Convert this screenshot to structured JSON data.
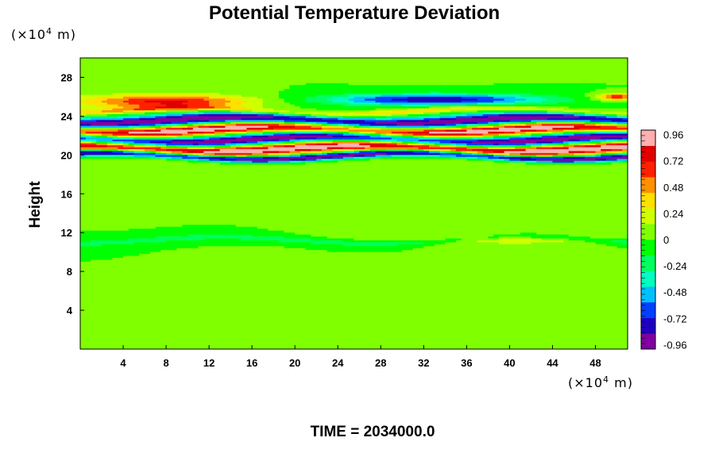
{
  "chart_data": {
    "type": "heatmap",
    "title": "Potential Temperature Deviation",
    "ylabel": "Height",
    "xlabel": "",
    "x_unit_prefix": "(×10",
    "x_unit_exp": "4",
    "x_unit_suffix": " m)",
    "y_unit_prefix": "(×10",
    "y_unit_exp": "4",
    "y_unit_suffix": " m)",
    "xlim": [
      0,
      51
    ],
    "ylim": [
      0,
      30
    ],
    "x_ticks": [
      "4",
      "8",
      "12",
      "16",
      "20",
      "24",
      "28",
      "32",
      "36",
      "40",
      "44",
      "48"
    ],
    "x_tick_values": [
      4,
      8,
      12,
      16,
      20,
      24,
      28,
      32,
      36,
      40,
      44,
      48
    ],
    "y_ticks": [
      "4",
      "8",
      "12",
      "16",
      "20",
      "24",
      "28"
    ],
    "y_tick_values": [
      4,
      8,
      12,
      16,
      20,
      24,
      28
    ],
    "colorbar": {
      "range": [
        -1.0,
        1.0
      ],
      "tick_labels": [
        "0.96",
        "0.72",
        "0.48",
        "0.24",
        "0",
        "-0.24",
        "-0.48",
        "-0.72",
        "-0.96"
      ],
      "tick_values": [
        0.96,
        0.72,
        0.48,
        0.24,
        0,
        -0.24,
        -0.48,
        -0.72,
        -0.96
      ],
      "colors_low_to_high": [
        "#8000a0",
        "#2000c0",
        "#0040ff",
        "#00c0ff",
        "#00ffc0",
        "#00ff60",
        "#00ff00",
        "#80ff00",
        "#d0ff00",
        "#ffe000",
        "#ff9000",
        "#ff2000",
        "#e00000",
        "#ffb0b0"
      ]
    },
    "background_value": 0.0,
    "features": [
      {
        "kind": "horizontal_band",
        "y_center": 29.0,
        "thickness": 1.2,
        "value": 0.1
      },
      {
        "kind": "wave_band",
        "y_center": 25.5,
        "thickness": 1.2,
        "x_center": 8,
        "x_halfwidth": 8,
        "value": 0.75
      },
      {
        "kind": "wave_band",
        "y_center": 25.7,
        "thickness": 1.0,
        "x_center": 33,
        "x_halfwidth": 10,
        "value": -0.85
      },
      {
        "kind": "wave_band",
        "y_center": 26.0,
        "thickness": 0.6,
        "x_center": 50,
        "x_halfwidth": 2,
        "value": 0.7
      },
      {
        "kind": "horizontal_band",
        "y_center": 24.5,
        "thickness": 0.5,
        "value": 0.4
      },
      {
        "kind": "horizontal_band",
        "y_center": 23.5,
        "thickness": 1.0,
        "value": -1.0
      },
      {
        "kind": "horizontal_band",
        "y_center": 22.6,
        "thickness": 0.9,
        "value": 1.0
      },
      {
        "kind": "horizontal_band",
        "y_center": 21.6,
        "thickness": 0.9,
        "value": -1.0
      },
      {
        "kind": "horizontal_band",
        "y_center": 20.7,
        "thickness": 0.9,
        "value": 1.0
      },
      {
        "kind": "horizontal_band",
        "y_center": 19.9,
        "thickness": 0.6,
        "value": -1.0
      },
      {
        "kind": "horizontal_band",
        "y_center": 19.2,
        "thickness": 0.5,
        "value": 0.1
      },
      {
        "kind": "horizontal_band",
        "y_center": 11.2,
        "thickness": 0.5,
        "value": -0.25
      },
      {
        "kind": "wave_band",
        "y_center": 11.3,
        "thickness": 0.8,
        "x_center": 40,
        "x_halfwidth": 10,
        "value": 0.3
      }
    ],
    "footer_label": "TIME = 2034000.0"
  }
}
